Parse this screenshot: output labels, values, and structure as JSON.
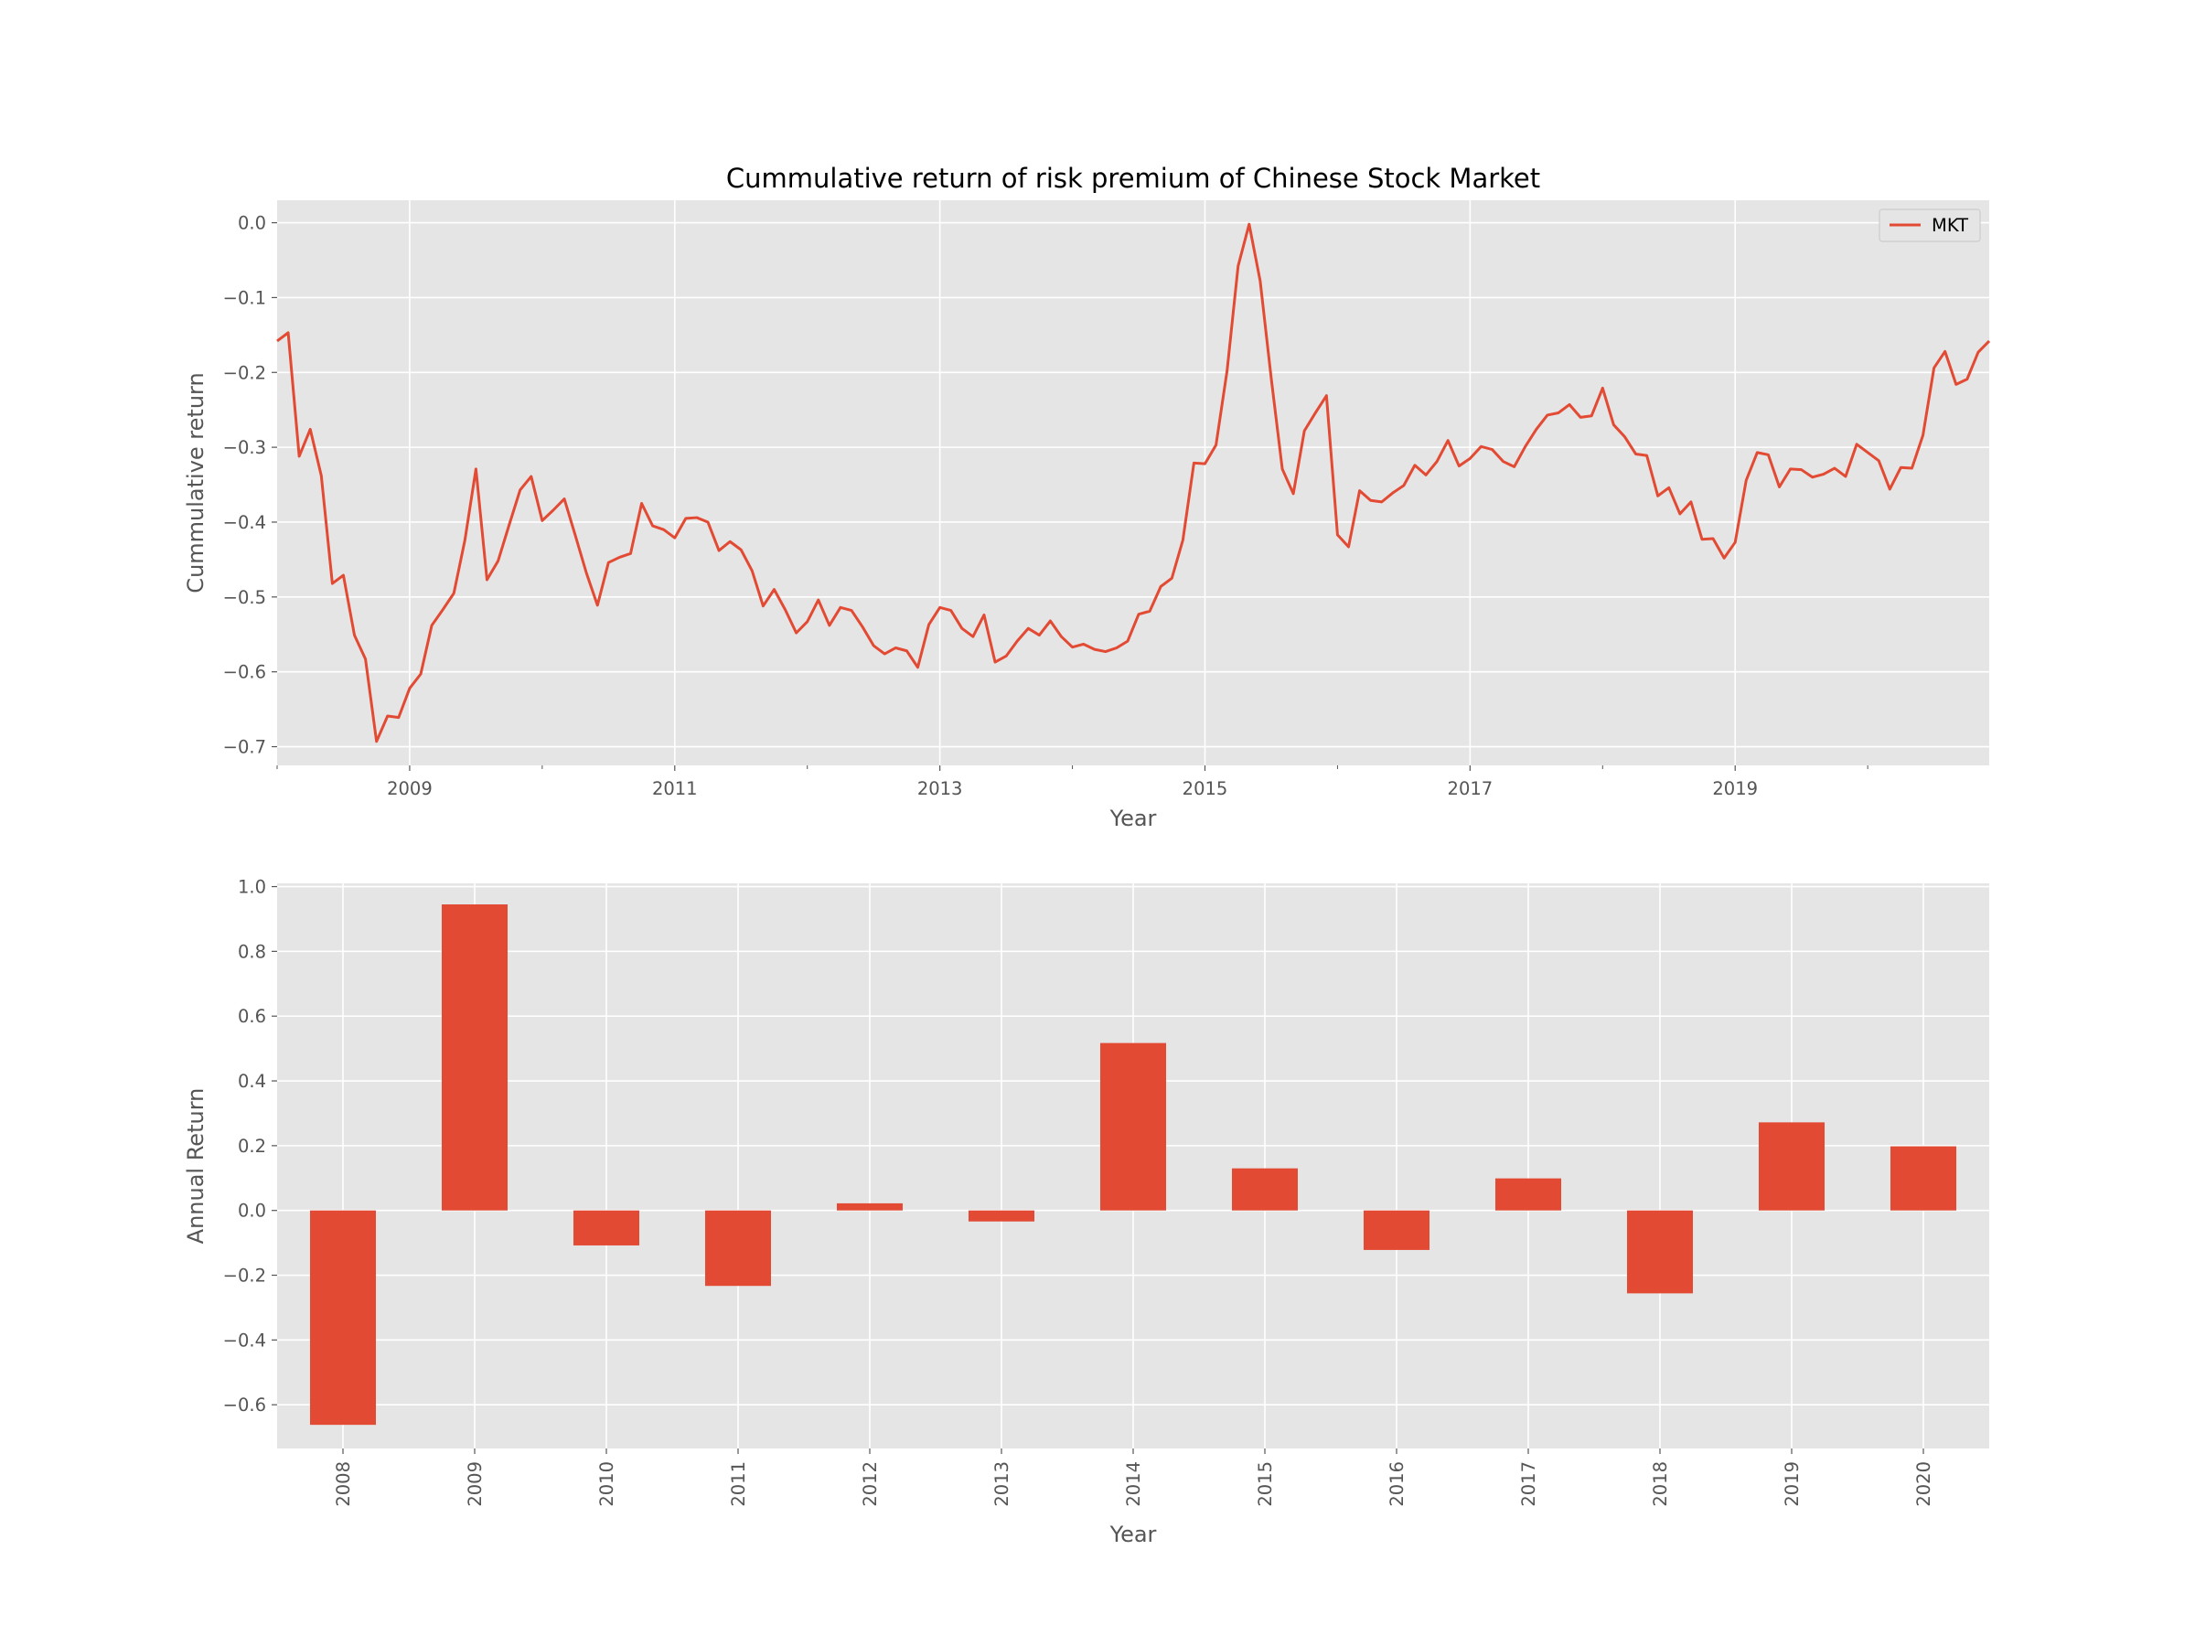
{
  "chart_data": [
    {
      "type": "line",
      "title": "Cummulative return of risk premium of Chinese Stock Market",
      "xlabel": "Year",
      "ylabel": "Cummulative return",
      "xlim": [
        "2008-01",
        "2020-12"
      ],
      "ylim": [
        -0.725,
        0.03
      ],
      "yticks": [
        0.0,
        -0.1,
        -0.2,
        -0.3,
        -0.4,
        -0.5,
        -0.6,
        -0.7
      ],
      "ytick_labels": [
        "0.0",
        "−0.1",
        "−0.2",
        "−0.3",
        "−0.4",
        "−0.5",
        "−0.6",
        "−0.7"
      ],
      "xtick_labels": [
        "2009",
        "2011",
        "2013",
        "2015",
        "2017",
        "2019"
      ],
      "grid": true,
      "legend": "top-right",
      "series": [
        {
          "name": "MKT",
          "color": "#E24A33",
          "x": [
            "2008-01",
            "2008-02",
            "2008-03",
            "2008-04",
            "2008-05",
            "2008-06",
            "2008-07",
            "2008-08",
            "2008-09",
            "2008-10",
            "2008-11",
            "2008-12",
            "2009-01",
            "2009-02",
            "2009-03",
            "2009-04",
            "2009-05",
            "2009-06",
            "2009-07",
            "2009-08",
            "2009-09",
            "2009-10",
            "2009-11",
            "2009-12",
            "2010-01",
            "2010-02",
            "2010-03",
            "2010-04",
            "2010-05",
            "2010-06",
            "2010-07",
            "2010-08",
            "2010-09",
            "2010-10",
            "2010-11",
            "2010-12",
            "2011-01",
            "2011-02",
            "2011-03",
            "2011-04",
            "2011-05",
            "2011-06",
            "2011-07",
            "2011-08",
            "2011-09",
            "2011-10",
            "2011-11",
            "2011-12",
            "2012-01",
            "2012-02",
            "2012-03",
            "2012-04",
            "2012-05",
            "2012-06",
            "2012-07",
            "2012-08",
            "2012-09",
            "2012-10",
            "2012-11",
            "2012-12",
            "2013-01",
            "2013-02",
            "2013-03",
            "2013-04",
            "2013-05",
            "2013-06",
            "2013-07",
            "2013-08",
            "2013-09",
            "2013-10",
            "2013-11",
            "2013-12",
            "2014-01",
            "2014-02",
            "2014-03",
            "2014-04",
            "2014-05",
            "2014-06",
            "2014-07",
            "2014-08",
            "2014-09",
            "2014-10",
            "2014-11",
            "2014-12",
            "2015-01",
            "2015-02",
            "2015-03",
            "2015-04",
            "2015-05",
            "2015-06",
            "2015-07",
            "2015-08",
            "2015-09",
            "2015-10",
            "2015-11",
            "2015-12",
            "2016-01",
            "2016-02",
            "2016-03",
            "2016-04",
            "2016-05",
            "2016-06",
            "2016-07",
            "2016-08",
            "2016-09",
            "2016-10",
            "2016-11",
            "2016-12",
            "2017-01",
            "2017-02",
            "2017-03",
            "2017-04",
            "2017-05",
            "2017-06",
            "2017-07",
            "2017-08",
            "2017-09",
            "2017-10",
            "2017-11",
            "2017-12",
            "2018-01",
            "2018-02",
            "2018-03",
            "2018-04",
            "2018-05",
            "2018-06",
            "2018-07",
            "2018-08",
            "2018-09",
            "2018-10",
            "2018-11",
            "2018-12",
            "2019-01",
            "2019-02",
            "2019-03",
            "2019-04",
            "2019-05",
            "2019-06",
            "2019-07",
            "2019-08",
            "2019-09",
            "2019-10",
            "2019-11",
            "2019-12",
            "2020-01",
            "2020-02",
            "2020-03",
            "2020-04",
            "2020-05",
            "2020-06",
            "2020-07",
            "2020-08",
            "2020-09",
            "2020-10",
            "2020-11",
            "2020-12"
          ],
          "y": [
            -0.158,
            -0.147,
            -0.312,
            -0.276,
            -0.338,
            -0.482,
            -0.471,
            -0.551,
            -0.583,
            -0.693,
            -0.659,
            -0.661,
            -0.622,
            -0.603,
            -0.538,
            -0.517,
            -0.495,
            -0.424,
            -0.329,
            -0.477,
            -0.452,
            -0.404,
            -0.357,
            -0.339,
            -0.398,
            -0.384,
            -0.369,
            -0.418,
            -0.468,
            -0.511,
            -0.454,
            -0.447,
            -0.442,
            -0.375,
            -0.405,
            -0.41,
            -0.421,
            -0.395,
            -0.394,
            -0.4,
            -0.438,
            -0.426,
            -0.437,
            -0.465,
            -0.512,
            -0.49,
            -0.517,
            -0.548,
            -0.533,
            -0.504,
            -0.538,
            -0.514,
            -0.518,
            -0.54,
            -0.565,
            -0.576,
            -0.568,
            -0.572,
            -0.594,
            -0.537,
            -0.514,
            -0.518,
            -0.542,
            -0.553,
            -0.524,
            -0.587,
            -0.579,
            -0.559,
            -0.542,
            -0.551,
            -0.532,
            -0.553,
            -0.567,
            -0.563,
            -0.57,
            -0.573,
            -0.568,
            -0.559,
            -0.523,
            -0.519,
            -0.486,
            -0.475,
            -0.424,
            -0.321,
            -0.322,
            -0.297,
            -0.198,
            -0.058,
            -0.002,
            -0.078,
            -0.208,
            -0.329,
            -0.362,
            -0.278,
            -0.254,
            -0.231,
            -0.417,
            -0.433,
            -0.358,
            -0.371,
            -0.373,
            -0.361,
            -0.351,
            -0.324,
            -0.337,
            -0.319,
            -0.291,
            -0.325,
            -0.315,
            -0.299,
            -0.303,
            -0.319,
            -0.326,
            -0.299,
            -0.276,
            -0.257,
            -0.254,
            -0.243,
            -0.26,
            -0.258,
            -0.221,
            -0.27,
            -0.286,
            -0.309,
            -0.311,
            -0.365,
            -0.354,
            -0.389,
            -0.373,
            -0.423,
            -0.422,
            -0.448,
            -0.427,
            -0.344,
            -0.307,
            -0.31,
            -0.353,
            -0.329,
            -0.33,
            -0.34,
            -0.336,
            -0.328,
            -0.339,
            -0.296,
            -0.307,
            -0.318,
            -0.356,
            -0.327,
            -0.328,
            -0.284,
            -0.194,
            -0.172,
            -0.216,
            -0.209,
            -0.173,
            -0.158
          ]
        }
      ]
    },
    {
      "type": "bar",
      "xlabel": "Year",
      "ylabel": "Annual Return",
      "ylim": [
        -0.735,
        1.01
      ],
      "yticks": [
        1.0,
        0.8,
        0.6,
        0.4,
        0.2,
        0.0,
        -0.2,
        -0.4,
        -0.6
      ],
      "ytick_labels": [
        "1.0",
        "0.8",
        "0.6",
        "0.4",
        "0.2",
        "0.0",
        "−0.2",
        "−0.4",
        "−0.6"
      ],
      "grid": true,
      "color": "#E24A33",
      "categories": [
        "2008",
        "2009",
        "2010",
        "2011",
        "2012",
        "2013",
        "2014",
        "2015",
        "2016",
        "2017",
        "2018",
        "2019",
        "2020"
      ],
      "values": [
        -0.662,
        0.945,
        -0.108,
        -0.233,
        0.022,
        -0.034,
        0.517,
        0.13,
        -0.122,
        0.099,
        -0.256,
        0.272,
        0.198
      ]
    }
  ]
}
